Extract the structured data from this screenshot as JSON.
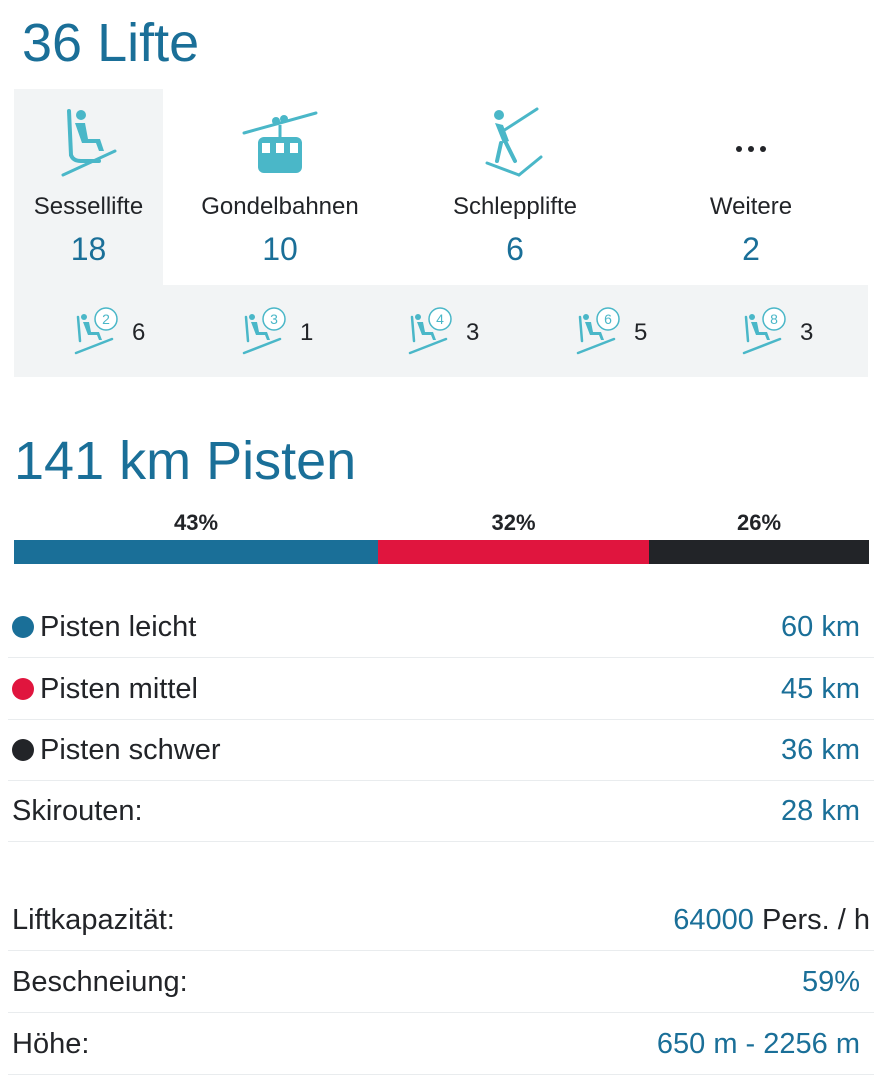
{
  "lifts": {
    "title": "36 Lifte",
    "types": [
      {
        "label": "Sessellifte",
        "count": "18",
        "icon": "chairlift-icon"
      },
      {
        "label": "Gondelbahnen",
        "count": "10",
        "icon": "gondola-icon"
      },
      {
        "label": "Schlepplifte",
        "count": "6",
        "icon": "draglift-icon"
      },
      {
        "label": "Weitere",
        "count": "2",
        "icon": "more-icon"
      }
    ],
    "chair_seats": [
      {
        "seats": "2",
        "count": "6"
      },
      {
        "seats": "3",
        "count": "1"
      },
      {
        "seats": "4",
        "count": "3"
      },
      {
        "seats": "6",
        "count": "5"
      },
      {
        "seats": "8",
        "count": "3"
      }
    ]
  },
  "pistes": {
    "title": "141 km Pisten",
    "distribution": [
      {
        "label": "43%",
        "value": 43,
        "color": "#1a6f98"
      },
      {
        "label": "32%",
        "value": 32,
        "color": "#e0153e"
      },
      {
        "label": "26%",
        "value": 26,
        "color": "#222428"
      }
    ],
    "rows": [
      {
        "label": "Pisten leicht",
        "value": "60 km",
        "color": "#1a6f98"
      },
      {
        "label": "Pisten mittel",
        "value": "45 km",
        "color": "#e0153e"
      },
      {
        "label": "Pisten schwer",
        "value": "36 km",
        "color": "#222428"
      },
      {
        "label": "Skirouten:",
        "value": "28 km"
      }
    ]
  },
  "stats": {
    "capacity_label": "Liftkapazität:",
    "capacity_value": "64000",
    "capacity_unit": " Pers. / h",
    "snow_label": "Beschneiung:",
    "snow_value": "59%",
    "height_label": "Höhe:",
    "height_value": "650 m - 2256 m"
  },
  "colors": {
    "accent": "#1a6f98",
    "icon": "#4ab7c8",
    "panel": "#f2f4f5"
  }
}
